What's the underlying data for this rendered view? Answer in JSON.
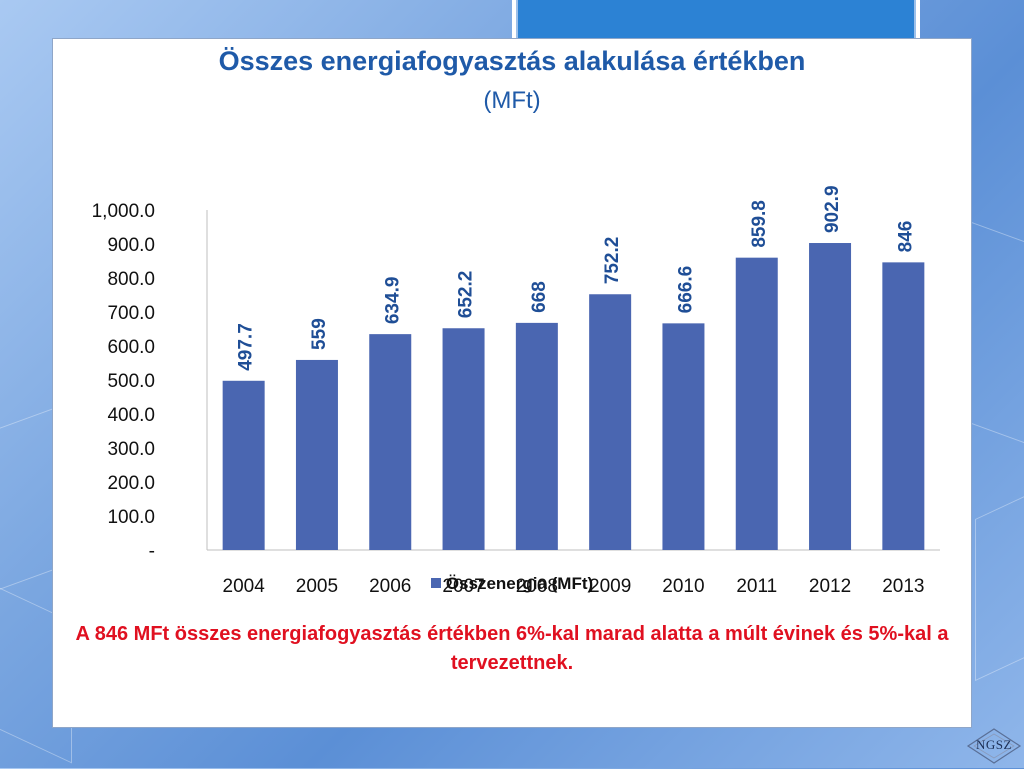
{
  "chart_data": {
    "type": "bar",
    "title": "Összes energiafogyasztás alakulása értékben",
    "subtitle": "(MFt)",
    "categories": [
      "2004",
      "2005",
      "2006",
      "2007",
      "2008",
      "2009",
      "2010",
      "2011",
      "2012",
      "2013"
    ],
    "series": [
      {
        "name": "Összenergia (MFt)",
        "values": [
          497.7,
          559,
          634.9,
          652.2,
          668,
          752.2,
          666.6,
          859.8,
          902.9,
          846
        ]
      }
    ],
    "value_labels": [
      "497.7",
      "559",
      "634.9",
      "652.2",
      "668",
      "752.2",
      "666.6",
      "859.8",
      "902.9",
      "846"
    ],
    "ylim": [
      0,
      1000
    ],
    "y_ticks": [
      {
        "value": 0,
        "label": "-"
      },
      {
        "value": 100,
        "label": "100.0"
      },
      {
        "value": 200,
        "label": "200.0"
      },
      {
        "value": 300,
        "label": "300.0"
      },
      {
        "value": 400,
        "label": "400.0"
      },
      {
        "value": 500,
        "label": "500.0"
      },
      {
        "value": 600,
        "label": "600.0"
      },
      {
        "value": 700,
        "label": "700.0"
      },
      {
        "value": 800,
        "label": "800.0"
      },
      {
        "value": 900,
        "label": "900.0"
      },
      {
        "value": 1000,
        "label": "1,000.0"
      }
    ],
    "grid": false,
    "legend_position": "bottom",
    "bar_color": "#4a66b1",
    "label_color": "#1f4e96"
  },
  "legend": {
    "label": "Összenergia (MFt)"
  },
  "note": "A 846 MFt összes energiafogyasztás értékben 6%-kal marad alatta a múlt évinek és 5%-kal a tervezettnek.",
  "logo": {
    "text": "NGSZ"
  },
  "colors": {
    "title": "#1f5aa8",
    "note": "#e01020",
    "accent_box": "#2c82d4"
  }
}
